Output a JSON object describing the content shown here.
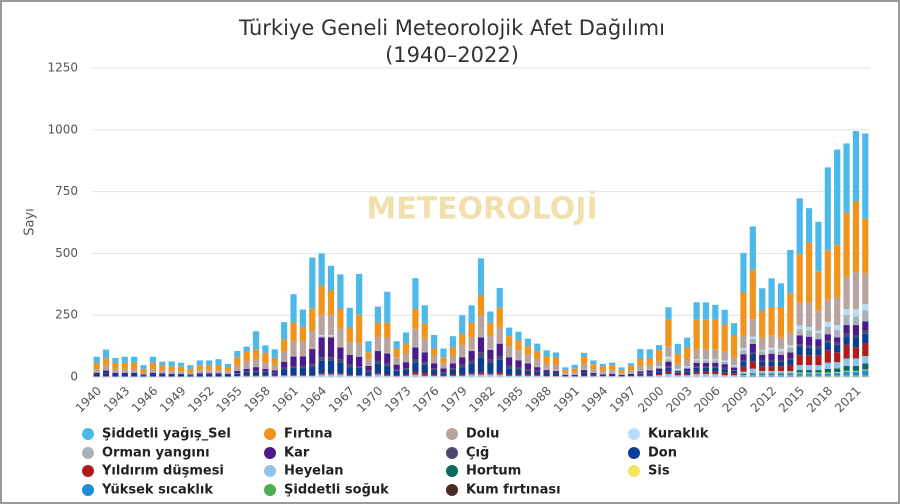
{
  "chart_data": {
    "type": "stacked-bar",
    "title": "Türkiye Geneli Meteorolojik Afet Dağılımı",
    "subtitle": "(1940–2022)",
    "y_label": "Sayı",
    "watermark": "METEOROLOJİ",
    "grid": true,
    "ylim": [
      0,
      1250
    ],
    "yticks": [
      0,
      250,
      500,
      750,
      1000,
      1250
    ],
    "categories": [
      "1940",
      null,
      null,
      "1943",
      null,
      null,
      "1946",
      null,
      null,
      "1949",
      null,
      null,
      "1952",
      null,
      null,
      "1955",
      null,
      null,
      "1958",
      null,
      null,
      "1961",
      null,
      null,
      "1964",
      null,
      null,
      "1967",
      null,
      null,
      "1970",
      null,
      null,
      "1973",
      null,
      null,
      "1976",
      null,
      null,
      "1979",
      null,
      null,
      "1982",
      null,
      null,
      "1985",
      null,
      null,
      "1988",
      null,
      null,
      "1991",
      null,
      null,
      "1994",
      null,
      null,
      "1997",
      null,
      null,
      "2000",
      null,
      null,
      "2003",
      null,
      null,
      "2006",
      null,
      null,
      "2009",
      null,
      null,
      "2012",
      null,
      null,
      "2015",
      null,
      null,
      "2018",
      null,
      null,
      "2021",
      null
    ],
    "series": [
      {
        "name": "Şiddetli yağış_Sel",
        "color": "#4db8ea",
        "values": [
          25,
          35,
          20,
          25,
          25,
          15,
          25,
          15,
          20,
          15,
          15,
          20,
          20,
          25,
          15,
          25,
          20,
          75,
          30,
          35,
          70,
          115,
          70,
          205,
          130,
          100,
          140,
          80,
          165,
          45,
          65,
          125,
          30,
          45,
          125,
          75,
          55,
          35,
          45,
          75,
          70,
          150,
          45,
          80,
          35,
          35,
          30,
          30,
          25,
          20,
          10,
          15,
          15,
          15,
          10,
          10,
          10,
          10,
          40,
          35,
          20,
          50,
          40,
          40,
          70,
          70,
          60,
          60,
          50,
          160,
          175,
          90,
          120,
          100,
          175,
          225,
          140,
          200,
          335,
          385,
          280,
          285,
          345
        ]
      },
      {
        "name": "Fırtına",
        "color": "#f0941e",
        "values": [
          25,
          30,
          25,
          25,
          25,
          15,
          25,
          20,
          20,
          20,
          15,
          20,
          20,
          20,
          15,
          35,
          40,
          40,
          40,
          30,
          50,
          75,
          60,
          90,
          120,
          100,
          80,
          60,
          115,
          30,
          60,
          60,
          35,
          40,
          80,
          60,
          30,
          25,
          35,
          45,
          60,
          80,
          55,
          80,
          40,
          40,
          35,
          35,
          30,
          30,
          12,
          15,
          30,
          20,
          20,
          20,
          12,
          20,
          30,
          30,
          45,
          110,
          40,
          50,
          120,
          120,
          120,
          110,
          90,
          175,
          200,
          110,
          110,
          120,
          160,
          200,
          240,
          160,
          200,
          215,
          260,
          285,
          220
        ]
      },
      {
        "name": "Dolu",
        "color": "#b8a39e",
        "values": [
          15,
          20,
          15,
          15,
          15,
          8,
          15,
          12,
          10,
          10,
          8,
          12,
          12,
          12,
          10,
          20,
          30,
          30,
          25,
          20,
          40,
          60,
          60,
          70,
          80,
          80,
          70,
          50,
          50,
          25,
          55,
          60,
          30,
          35,
          70,
          50,
          30,
          20,
          30,
          50,
          50,
          80,
          50,
          60,
          40,
          35,
          30,
          25,
          20,
          20,
          6,
          8,
          20,
          12,
          10,
          12,
          6,
          10,
          15,
          15,
          20,
          40,
          20,
          25,
          40,
          40,
          40,
          35,
          30,
          50,
          70,
          50,
          50,
          45,
          50,
          90,
          100,
          80,
          90,
          110,
          130,
          150,
          125
        ]
      },
      {
        "name": "Kuraklık",
        "color": "#b8dcf4",
        "values": [
          0,
          0,
          0,
          0,
          0,
          0,
          0,
          0,
          0,
          0,
          0,
          0,
          0,
          0,
          0,
          0,
          0,
          0,
          0,
          0,
          0,
          2,
          0,
          0,
          5,
          5,
          0,
          0,
          0,
          0,
          0,
          0,
          0,
          0,
          0,
          0,
          0,
          0,
          0,
          0,
          0,
          0,
          0,
          0,
          0,
          0,
          0,
          0,
          0,
          0,
          0,
          0,
          0,
          0,
          0,
          0,
          0,
          0,
          0,
          0,
          5,
          10,
          5,
          5,
          5,
          5,
          5,
          5,
          5,
          10,
          10,
          5,
          10,
          10,
          10,
          15,
          15,
          10,
          20,
          20,
          25,
          30,
          25
        ]
      },
      {
        "name": "Orman yangını",
        "color": "#a7b1b7",
        "values": [
          0,
          0,
          0,
          0,
          0,
          0,
          0,
          0,
          0,
          0,
          0,
          0,
          0,
          0,
          0,
          0,
          0,
          0,
          0,
          0,
          0,
          0,
          0,
          5,
          5,
          5,
          5,
          0,
          5,
          0,
          0,
          5,
          0,
          0,
          5,
          5,
          0,
          0,
          0,
          0,
          5,
          10,
          5,
          5,
          5,
          5,
          5,
          5,
          5,
          5,
          2,
          2,
          5,
          3,
          2,
          3,
          2,
          3,
          5,
          5,
          5,
          10,
          5,
          5,
          10,
          10,
          10,
          10,
          5,
          15,
          20,
          15,
          15,
          15,
          20,
          25,
          25,
          25,
          30,
          30,
          40,
          35,
          45
        ]
      },
      {
        "name": "Kar",
        "color": "#4b1a8c",
        "values": [
          5,
          10,
          5,
          5,
          5,
          3,
          5,
          5,
          3,
          3,
          3,
          5,
          5,
          5,
          3,
          10,
          10,
          15,
          10,
          10,
          25,
          40,
          40,
          60,
          80,
          80,
          50,
          40,
          40,
          20,
          40,
          40,
          20,
          25,
          50,
          40,
          20,
          15,
          20,
          30,
          40,
          60,
          40,
          50,
          35,
          30,
          25,
          15,
          10,
          8,
          3,
          3,
          10,
          5,
          3,
          5,
          3,
          5,
          8,
          10,
          10,
          20,
          5,
          10,
          15,
          15,
          15,
          15,
          10,
          25,
          35,
          20,
          25,
          20,
          25,
          35,
          35,
          30,
          25,
          20,
          35,
          40,
          35
        ]
      },
      {
        "name": "Çığ",
        "color": "#4b4a6b",
        "values": [
          0,
          2,
          0,
          0,
          0,
          0,
          0,
          0,
          0,
          0,
          0,
          0,
          0,
          0,
          0,
          2,
          3,
          5,
          3,
          2,
          5,
          5,
          5,
          10,
          15,
          15,
          10,
          10,
          5,
          5,
          10,
          10,
          5,
          5,
          10,
          10,
          5,
          5,
          5,
          10,
          10,
          20,
          10,
          15,
          10,
          8,
          5,
          5,
          2,
          2,
          0,
          0,
          2,
          2,
          0,
          0,
          0,
          0,
          2,
          2,
          2,
          5,
          2,
          2,
          5,
          5,
          5,
          5,
          3,
          5,
          5,
          5,
          5,
          5,
          5,
          10,
          10,
          10,
          10,
          10,
          10,
          10,
          15
        ]
      },
      {
        "name": "Don",
        "color": "#0b3d91",
        "values": [
          10,
          10,
          10,
          10,
          10,
          5,
          10,
          8,
          8,
          8,
          5,
          8,
          8,
          8,
          8,
          10,
          15,
          15,
          15,
          10,
          25,
          30,
          30,
          35,
          50,
          50,
          45,
          30,
          30,
          15,
          40,
          35,
          20,
          20,
          40,
          35,
          20,
          10,
          20,
          30,
          40,
          60,
          45,
          50,
          25,
          20,
          15,
          10,
          10,
          8,
          3,
          3,
          10,
          5,
          4,
          4,
          3,
          4,
          8,
          10,
          10,
          15,
          5,
          10,
          15,
          15,
          15,
          15,
          10,
          20,
          30,
          20,
          20,
          20,
          20,
          35,
          30,
          25,
          30,
          30,
          35,
          40,
          40
        ]
      },
      {
        "name": "Yıldırım düşmesi",
        "color": "#b01c1c",
        "values": [
          0,
          2,
          0,
          0,
          0,
          0,
          0,
          0,
          0,
          0,
          0,
          0,
          0,
          0,
          0,
          0,
          2,
          2,
          2,
          2,
          2,
          3,
          3,
          3,
          5,
          5,
          5,
          5,
          2,
          2,
          5,
          5,
          2,
          5,
          10,
          10,
          5,
          2,
          5,
          5,
          5,
          10,
          5,
          10,
          5,
          5,
          5,
          5,
          3,
          3,
          1,
          1,
          3,
          2,
          1,
          1,
          1,
          1,
          2,
          2,
          5,
          10,
          5,
          5,
          10,
          10,
          10,
          10,
          8,
          20,
          30,
          20,
          20,
          20,
          25,
          40,
          40,
          40,
          50,
          40,
          55,
          45,
          50
        ]
      },
      {
        "name": "Heyelan",
        "color": "#8fc3ec",
        "values": [
          2,
          2,
          2,
          2,
          2,
          2,
          2,
          2,
          2,
          2,
          2,
          2,
          2,
          2,
          2,
          3,
          3,
          3,
          3,
          3,
          5,
          5,
          5,
          5,
          10,
          10,
          10,
          5,
          5,
          3,
          10,
          5,
          3,
          5,
          10,
          5,
          5,
          3,
          5,
          5,
          10,
          10,
          10,
          10,
          5,
          5,
          5,
          5,
          3,
          3,
          2,
          2,
          3,
          3,
          3,
          3,
          2,
          3,
          3,
          3,
          5,
          10,
          5,
          5,
          10,
          10,
          10,
          5,
          5,
          10,
          20,
          10,
          10,
          10,
          10,
          20,
          20,
          20,
          25,
          25,
          30,
          30,
          30
        ]
      },
      {
        "name": "Hortum",
        "color": "#0c6b5c",
        "values": [
          0,
          0,
          0,
          0,
          0,
          0,
          0,
          0,
          0,
          0,
          0,
          0,
          0,
          0,
          0,
          0,
          0,
          0,
          0,
          0,
          0,
          0,
          0,
          0,
          0,
          0,
          0,
          0,
          0,
          0,
          0,
          0,
          0,
          0,
          0,
          0,
          0,
          0,
          0,
          0,
          0,
          0,
          0,
          0,
          0,
          0,
          0,
          0,
          0,
          0,
          0,
          0,
          0,
          0,
          0,
          0,
          0,
          0,
          0,
          0,
          0,
          0,
          0,
          0,
          0,
          0,
          0,
          0,
          0,
          5,
          5,
          5,
          5,
          5,
          5,
          10,
          10,
          10,
          15,
          15,
          20,
          20,
          25
        ]
      },
      {
        "name": "Sis",
        "color": "#f7e35a",
        "values": [
          0,
          0,
          0,
          0,
          0,
          0,
          0,
          0,
          0,
          0,
          0,
          0,
          0,
          0,
          0,
          0,
          0,
          0,
          0,
          0,
          0,
          0,
          0,
          0,
          0,
          0,
          0,
          0,
          0,
          0,
          0,
          0,
          0,
          0,
          0,
          0,
          0,
          0,
          0,
          0,
          0,
          0,
          0,
          0,
          0,
          0,
          0,
          0,
          0,
          0,
          0,
          0,
          0,
          0,
          0,
          0,
          0,
          0,
          0,
          0,
          2,
          2,
          2,
          2,
          2,
          2,
          2,
          2,
          2,
          2,
          2,
          2,
          2,
          2,
          2,
          3,
          3,
          3,
          3,
          3,
          3,
          3,
          3
        ]
      },
      {
        "name": "Yüksek sıcaklık",
        "color": "#1f8fd6",
        "values": [
          0,
          0,
          0,
          0,
          0,
          0,
          0,
          0,
          0,
          0,
          0,
          0,
          0,
          0,
          0,
          0,
          0,
          0,
          0,
          0,
          0,
          0,
          0,
          0,
          0,
          0,
          0,
          0,
          0,
          0,
          0,
          0,
          0,
          0,
          0,
          0,
          0,
          0,
          0,
          0,
          0,
          0,
          0,
          0,
          0,
          0,
          0,
          0,
          0,
          0,
          0,
          0,
          0,
          0,
          0,
          0,
          0,
          0,
          0,
          0,
          0,
          0,
          0,
          0,
          0,
          0,
          0,
          0,
          0,
          5,
          5,
          5,
          5,
          5,
          5,
          10,
          10,
          10,
          10,
          10,
          15,
          15,
          20
        ]
      },
      {
        "name": "Şiddetli soğuk",
        "color": "#4caf50",
        "values": [
          0,
          0,
          0,
          0,
          0,
          0,
          0,
          0,
          0,
          0,
          0,
          0,
          0,
          0,
          0,
          0,
          0,
          0,
          0,
          0,
          0,
          0,
          0,
          0,
          0,
          0,
          0,
          0,
          0,
          0,
          0,
          0,
          0,
          0,
          0,
          0,
          0,
          0,
          0,
          0,
          0,
          0,
          0,
          0,
          0,
          0,
          0,
          0,
          0,
          0,
          0,
          0,
          0,
          0,
          0,
          0,
          0,
          0,
          0,
          0,
          0,
          0,
          0,
          0,
          0,
          0,
          0,
          0,
          0,
          0,
          2,
          2,
          2,
          2,
          2,
          5,
          5,
          5,
          5,
          5,
          5,
          5,
          5
        ]
      },
      {
        "name": "Kum fırtınası",
        "color": "#4a2a24",
        "values": [
          0,
          0,
          0,
          0,
          0,
          0,
          0,
          0,
          0,
          0,
          0,
          0,
          0,
          0,
          0,
          0,
          0,
          0,
          0,
          0,
          0,
          0,
          0,
          0,
          0,
          0,
          0,
          0,
          0,
          0,
          0,
          0,
          0,
          0,
          0,
          0,
          0,
          0,
          0,
          0,
          0,
          0,
          0,
          0,
          0,
          0,
          0,
          0,
          0,
          0,
          0,
          0,
          0,
          0,
          0,
          0,
          0,
          0,
          0,
          0,
          0,
          0,
          0,
          0,
          0,
          0,
          0,
          0,
          0,
          0,
          0,
          0,
          0,
          0,
          0,
          0,
          0,
          0,
          0,
          2,
          2,
          2,
          2
        ]
      }
    ]
  }
}
